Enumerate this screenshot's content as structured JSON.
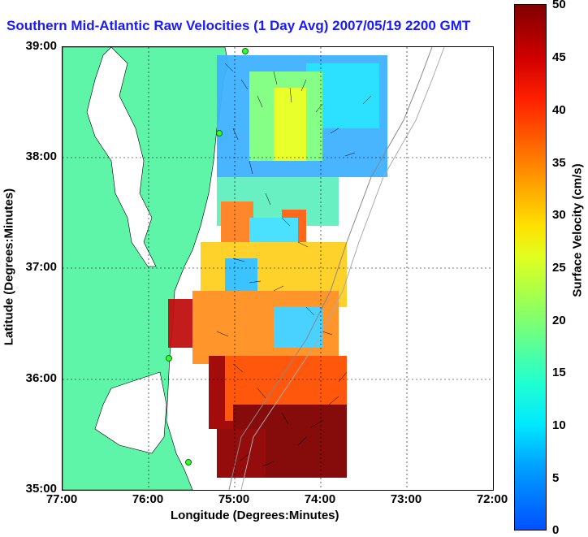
{
  "title": "Southern Mid-Atlantic Raw Velocities (1 Day Avg) 2007/05/19 2200 GMT",
  "axes": {
    "x_label": "Longitude (Degrees:Minutes)",
    "y_label": "Latitude (Degrees:Minutes)",
    "x_ticks": [
      "77:00",
      "76:00",
      "75:00",
      "74:00",
      "73:00",
      "72:00"
    ],
    "y_ticks": [
      "39:00",
      "38:00",
      "37:00",
      "36:00",
      "35:00"
    ]
  },
  "colorbar": {
    "label": "Surface Velocity (cm/s)",
    "ticks": [
      "50",
      "45",
      "40",
      "35",
      "30",
      "25",
      "20",
      "15",
      "10",
      "5",
      "0"
    ],
    "range": [
      0,
      50
    ]
  },
  "colors": {
    "land": "#5ef5a8",
    "title": "#1a1aff",
    "station": "#33ff33"
  },
  "map": {
    "lon_range": [
      -77,
      -72
    ],
    "lat_range": [
      35,
      39
    ],
    "grid": true
  }
}
